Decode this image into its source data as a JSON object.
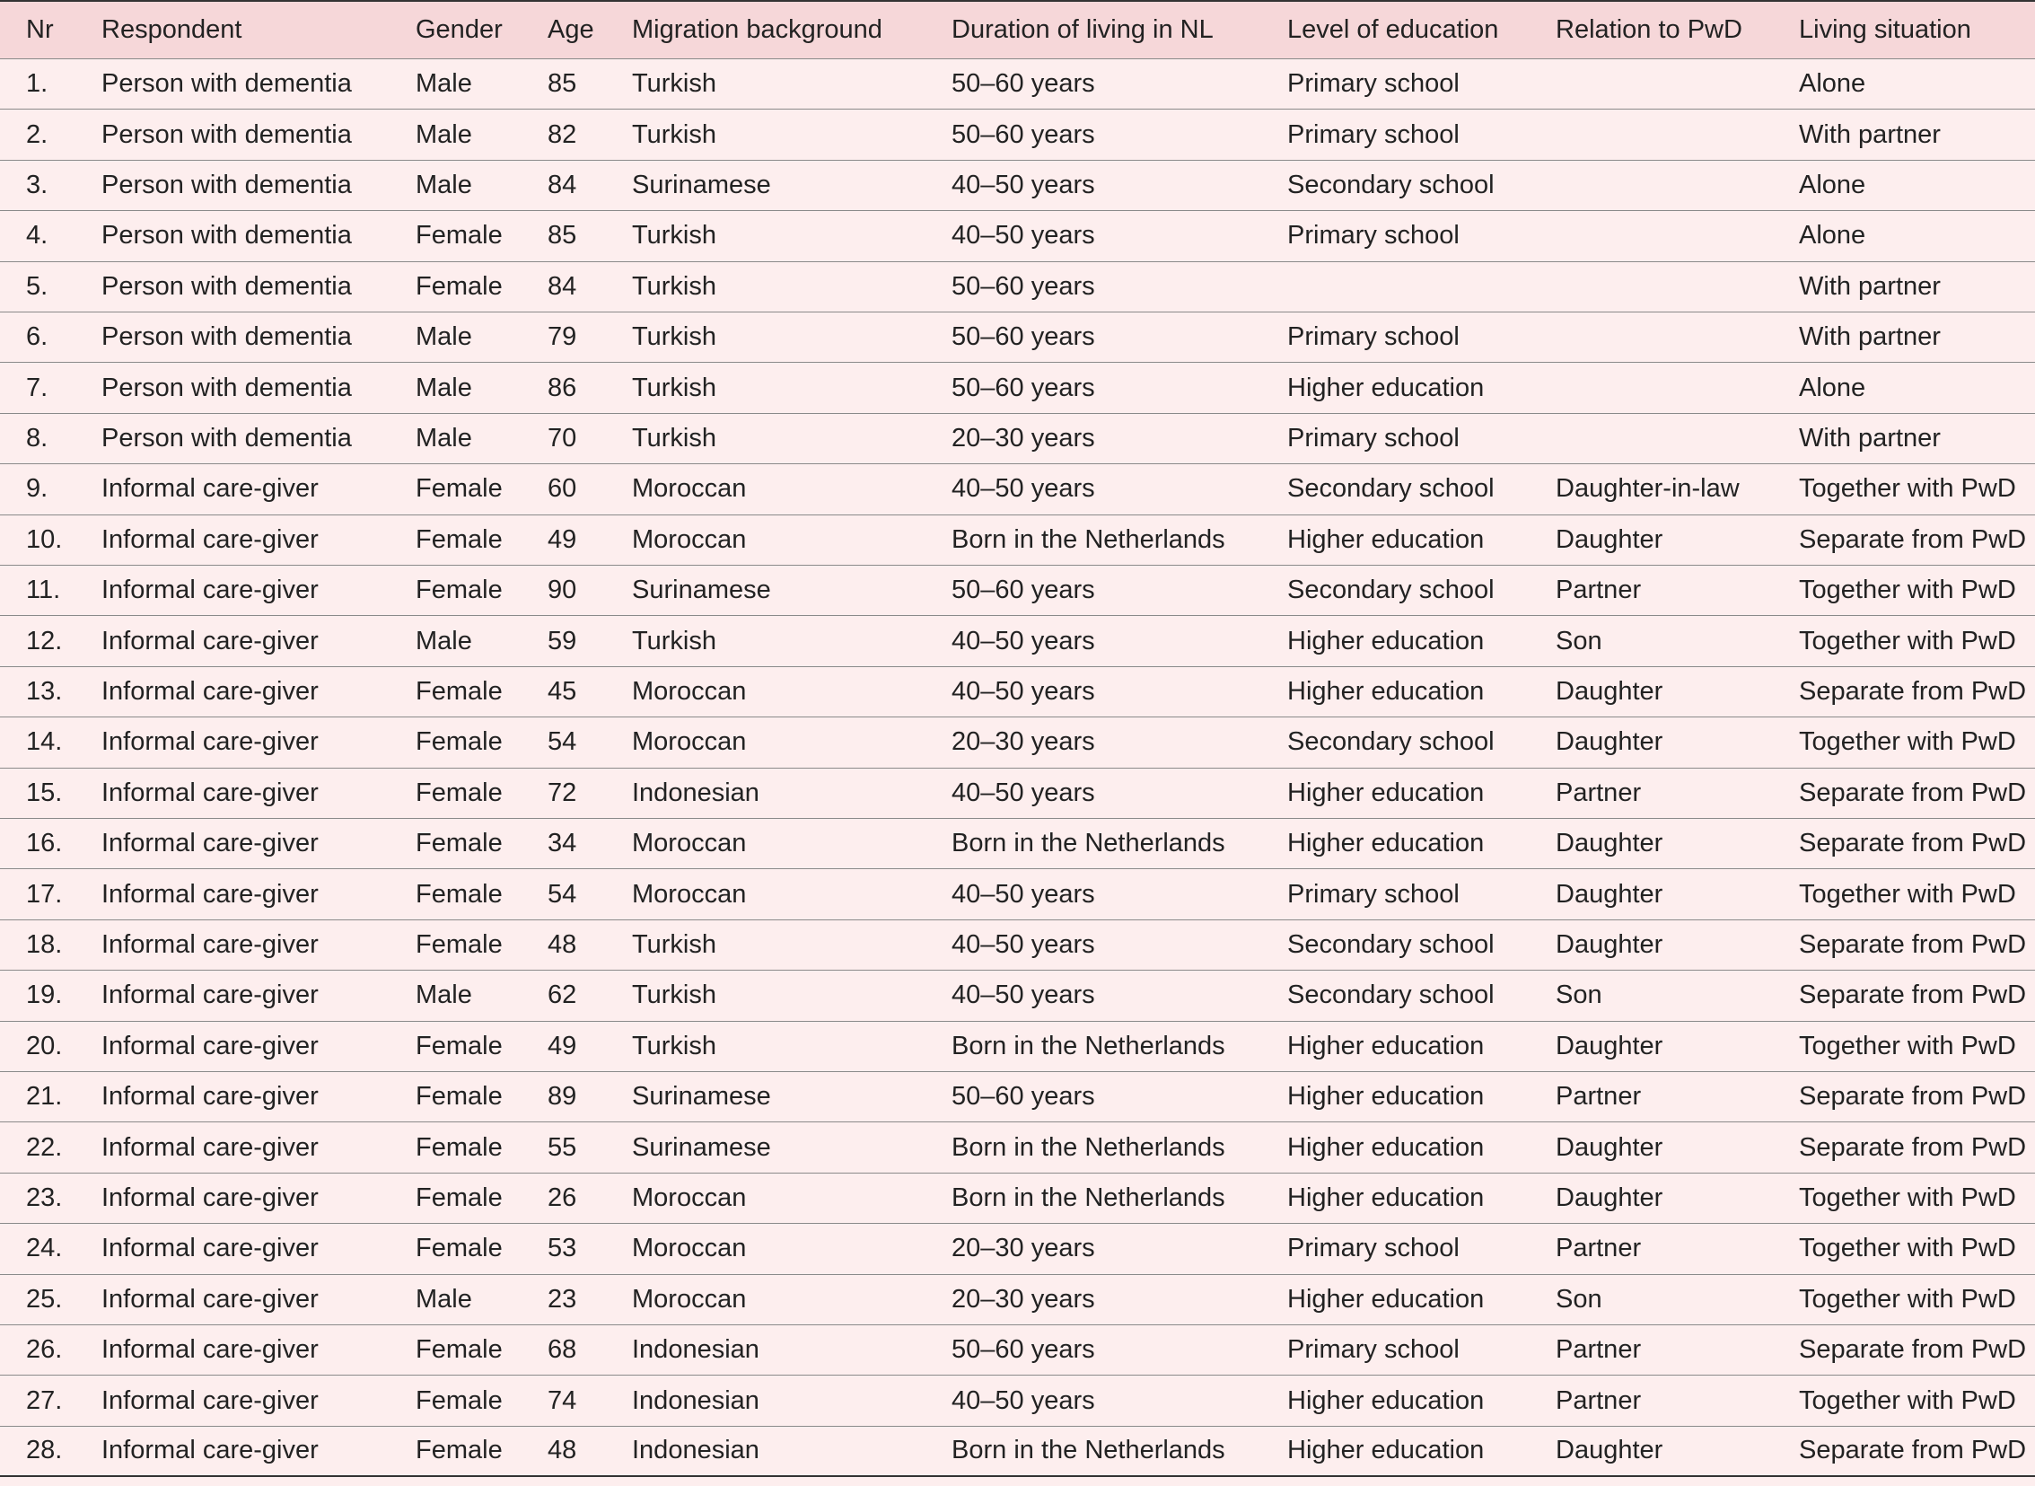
{
  "table": {
    "header": [
      "Nr",
      "Respondent",
      "Gender",
      "Age",
      "Migration background",
      "Duration of living in NL",
      "Level of education",
      "Relation to PwD",
      "Living situation"
    ],
    "rows": [
      [
        "1.",
        "Person with dementia",
        "Male",
        "85",
        "Turkish",
        "50–60 years",
        "Primary school",
        null,
        "Alone"
      ],
      [
        "2.",
        "Person with dementia",
        "Male",
        "82",
        "Turkish",
        "50–60 years",
        "Primary school",
        null,
        "With partner"
      ],
      [
        "3.",
        "Person with dementia",
        "Male",
        "84",
        "Surinamese",
        "40–50 years",
        "Secondary school",
        null,
        "Alone"
      ],
      [
        "4.",
        "Person with dementia",
        "Female",
        "85",
        "Turkish",
        "40–50 years",
        "Primary school",
        null,
        "Alone"
      ],
      [
        "5.",
        "Person with dementia",
        "Female",
        "84",
        "Turkish",
        "50–60 years",
        null,
        null,
        "With partner"
      ],
      [
        "6.",
        "Person with dementia",
        "Male",
        "79",
        "Turkish",
        "50–60 years",
        "Primary school",
        null,
        "With partner"
      ],
      [
        "7.",
        "Person with dementia",
        "Male",
        "86",
        "Turkish",
        "50–60 years",
        "Higher education",
        null,
        "Alone"
      ],
      [
        "8.",
        "Person with dementia",
        "Male",
        "70",
        "Turkish",
        "20–30 years",
        "Primary school",
        null,
        "With partner"
      ],
      [
        "9.",
        "Informal care-giver",
        "Female",
        "60",
        "Moroccan",
        "40–50 years",
        "Secondary school",
        "Daughter-in-law",
        "Together with PwD"
      ],
      [
        "10.",
        "Informal care-giver",
        "Female",
        "49",
        "Moroccan",
        "Born in the Netherlands",
        "Higher education",
        "Daughter",
        "Separate from PwD"
      ],
      [
        "11.",
        "Informal care-giver",
        "Female",
        "90",
        "Surinamese",
        "50–60 years",
        "Secondary school",
        "Partner",
        "Together with PwD"
      ],
      [
        "12.",
        "Informal care-giver",
        "Male",
        "59",
        "Turkish",
        "40–50 years",
        "Higher education",
        "Son",
        "Together with PwD"
      ],
      [
        "13.",
        "Informal care-giver",
        "Female",
        "45",
        "Moroccan",
        "40–50 years",
        "Higher education",
        "Daughter",
        "Separate from PwD"
      ],
      [
        "14.",
        "Informal care-giver",
        "Female",
        "54",
        "Moroccan",
        "20–30 years",
        "Secondary school",
        "Daughter",
        "Together with PwD"
      ],
      [
        "15.",
        "Informal care-giver",
        "Female",
        "72",
        "Indonesian",
        "40–50 years",
        "Higher education",
        "Partner",
        "Separate from PwD"
      ],
      [
        "16.",
        "Informal care-giver",
        "Female",
        "34",
        "Moroccan",
        "Born in the Netherlands",
        "Higher education",
        "Daughter",
        "Separate from PwD"
      ],
      [
        "17.",
        "Informal care-giver",
        "Female",
        "54",
        "Moroccan",
        "40–50 years",
        "Primary school",
        "Daughter",
        "Together with PwD"
      ],
      [
        "18.",
        "Informal care-giver",
        "Female",
        "48",
        "Turkish",
        "40–50 years",
        "Secondary school",
        "Daughter",
        "Separate from PwD"
      ],
      [
        "19.",
        "Informal care-giver",
        "Male",
        "62",
        "Turkish",
        "40–50 years",
        "Secondary school",
        "Son",
        "Separate from PwD"
      ],
      [
        "20.",
        "Informal care-giver",
        "Female",
        "49",
        "Turkish",
        "Born in the Netherlands",
        "Higher education",
        "Daughter",
        "Together with PwD"
      ],
      [
        "21.",
        "Informal care-giver",
        "Female",
        "89",
        "Surinamese",
        "50–60 years",
        "Higher education",
        "Partner",
        "Separate from PwD"
      ],
      [
        "22.",
        "Informal care-giver",
        "Female",
        "55",
        "Surinamese",
        "Born in the Netherlands",
        "Higher education",
        "Daughter",
        "Separate from PwD"
      ],
      [
        "23.",
        "Informal care-giver",
        "Female",
        "26",
        "Moroccan",
        "Born in the Netherlands",
        "Higher education",
        "Daughter",
        "Together with PwD"
      ],
      [
        "24.",
        "Informal care-giver",
        "Female",
        "53",
        "Moroccan",
        "20–30 years",
        "Primary school",
        "Partner",
        "Together with PwD"
      ],
      [
        "25.",
        "Informal care-giver",
        "Male",
        "23",
        "Moroccan",
        "20–30 years",
        "Higher education",
        "Son",
        "Together with PwD"
      ],
      [
        "26.",
        "Informal care-giver",
        "Female",
        "68",
        "Indonesian",
        "50–60 years",
        "Primary school",
        "Partner",
        "Separate from PwD"
      ],
      [
        "27.",
        "Informal care-giver",
        "Female",
        "74",
        "Indonesian",
        "40–50 years",
        "Higher education",
        "Partner",
        "Together with PwD"
      ],
      [
        "28.",
        "Informal care-giver",
        "Female",
        "48",
        "Indonesian",
        "Born in the Netherlands",
        "Higher education",
        "Daughter",
        "Separate from PwD"
      ]
    ]
  }
}
